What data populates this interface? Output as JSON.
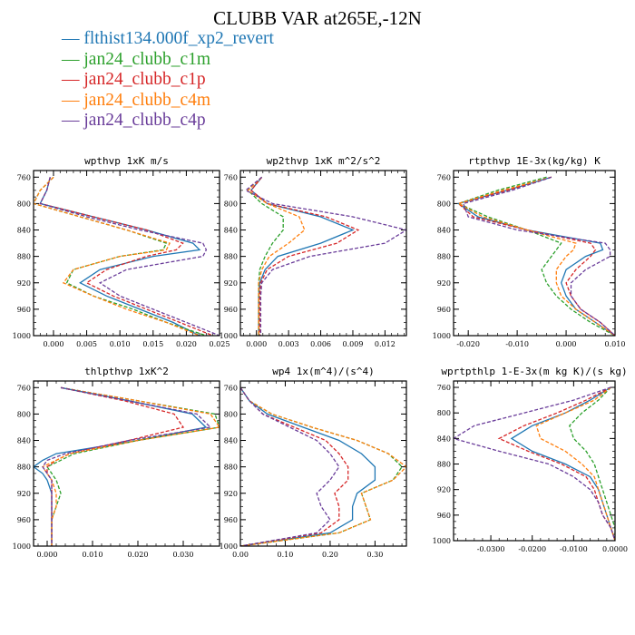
{
  "title": "CLUBB VAR at265E,-12N",
  "legend": [
    {
      "label": "flthist134.000f_xp2_revert",
      "color": "#1f77b4",
      "dash": "solid"
    },
    {
      "label": "jan24_clubb_c1m",
      "color": "#2ca02c",
      "dash": "dashed"
    },
    {
      "label": "jan24_clubb_c1p",
      "color": "#d62728",
      "dash": "dashed"
    },
    {
      "label": "jan24_clubb_c4m",
      "color": "#ff7f0e",
      "dash": "dashed"
    },
    {
      "label": "jan24_clubb_c4p",
      "color": "#6a3d9a",
      "dash": "dashed"
    }
  ],
  "legend_marker": "—",
  "chart_data": [
    {
      "type": "line",
      "title": "wpthvp  1xK m/s",
      "xlim": [
        -0.003,
        0.025
      ],
      "ylim": [
        1000,
        750
      ],
      "xticks": [
        0.0,
        0.005,
        0.01,
        0.015,
        0.02,
        0.025
      ],
      "xticklabels": [
        "0.000",
        "0.005",
        "0.010",
        "0.015",
        "0.020",
        "0.025"
      ],
      "yticks": [
        760,
        800,
        840,
        880,
        920,
        960,
        1000
      ],
      "yticklabels": [
        "760",
        "800",
        "840",
        "880",
        "920",
        "960",
        "1000"
      ],
      "grid": false,
      "y": [
        760,
        780,
        800,
        820,
        840,
        860,
        870,
        880,
        900,
        920,
        940,
        960,
        980,
        1000
      ],
      "series": [
        {
          "name": "flthist134.000f_xp2_revert",
          "values": [
            -0.0005,
            -0.001,
            -0.002,
            0.006,
            0.014,
            0.021,
            0.022,
            0.015,
            0.007,
            0.004,
            0.008,
            0.013,
            0.018,
            0.022
          ]
        },
        {
          "name": "jan24_clubb_c1m",
          "values": [
            0.0,
            -0.002,
            -0.003,
            0.004,
            0.011,
            0.017,
            0.0165,
            0.01,
            0.003,
            0.002,
            0.006,
            0.012,
            0.017,
            0.023
          ]
        },
        {
          "name": "jan24_clubb_c1p",
          "values": [
            -0.0005,
            -0.001,
            -0.002,
            0.006,
            0.014,
            0.0195,
            0.0185,
            0.014,
            0.008,
            0.005,
            0.009,
            0.014,
            0.019,
            0.024
          ]
        },
        {
          "name": "jan24_clubb_c4m",
          "values": [
            0.0,
            -0.002,
            -0.003,
            0.004,
            0.011,
            0.0175,
            0.017,
            0.01,
            0.003,
            0.0015,
            0.006,
            0.011,
            0.017,
            0.022
          ]
        },
        {
          "name": "jan24_clubb_c4p",
          "values": [
            -0.0005,
            -0.001,
            -0.002,
            0.005,
            0.013,
            0.0225,
            0.023,
            0.0225,
            0.011,
            0.007,
            0.01,
            0.015,
            0.02,
            0.025
          ]
        }
      ]
    },
    {
      "type": "line",
      "title": "wp2thvp  1xK m^2/s^2",
      "xlim": [
        -0.0015,
        0.014
      ],
      "ylim": [
        1000,
        750
      ],
      "xticks": [
        0.0,
        0.003,
        0.006,
        0.009,
        0.012
      ],
      "xticklabels": [
        "0.000",
        "0.003",
        "0.006",
        "0.009",
        "0.012"
      ],
      "yticks": [
        760,
        800,
        840,
        880,
        920,
        960,
        1000
      ],
      "yticklabels": [
        "760",
        "800",
        "840",
        "880",
        "920",
        "960",
        "1000"
      ],
      "grid": false,
      "y": [
        760,
        780,
        800,
        820,
        840,
        860,
        880,
        900,
        920,
        940,
        960,
        980,
        1000
      ],
      "series": [
        {
          "name": "flthist134.000f_xp2_revert",
          "values": [
            0.0005,
            -0.0005,
            0.001,
            0.006,
            0.009,
            0.006,
            0.002,
            0.0008,
            0.0003,
            0.0002,
            0.0002,
            0.0002,
            0.0002
          ]
        },
        {
          "name": "jan24_clubb_c1m",
          "values": [
            0.0005,
            -0.0008,
            0.0005,
            0.0025,
            0.0025,
            0.0015,
            0.0008,
            0.0003,
            0.0002,
            0.0002,
            0.0002,
            0.0002,
            0.0002
          ]
        },
        {
          "name": "jan24_clubb_c1p",
          "values": [
            0.0005,
            -0.0005,
            0.001,
            0.0065,
            0.0095,
            0.0075,
            0.003,
            0.001,
            0.0004,
            0.0003,
            0.0003,
            0.0003,
            0.0003
          ]
        },
        {
          "name": "jan24_clubb_c4m",
          "values": [
            0.0005,
            -0.0008,
            0.001,
            0.004,
            0.0045,
            0.003,
            0.0012,
            0.0005,
            0.0002,
            0.0002,
            0.0002,
            0.0002,
            0.0002
          ]
        },
        {
          "name": "jan24_clubb_c4p",
          "values": [
            0.0005,
            -0.001,
            0.0015,
            0.009,
            0.014,
            0.012,
            0.005,
            0.0015,
            0.0005,
            0.0004,
            0.0004,
            0.0004,
            0.0004
          ]
        }
      ]
    },
    {
      "type": "line",
      "title": "rtpthvp  1E-3x(kg/kg) K",
      "xlim": [
        -0.023,
        0.01
      ],
      "ylim": [
        1000,
        750
      ],
      "xticks": [
        -0.02,
        -0.01,
        0.0,
        0.01
      ],
      "xticklabels": [
        "-0.020",
        "-0.010",
        "0.000",
        "0.010"
      ],
      "yticks": [
        760,
        800,
        840,
        880,
        920,
        960,
        1000
      ],
      "yticklabels": [
        "760",
        "800",
        "840",
        "880",
        "920",
        "960",
        "1000"
      ],
      "grid": false,
      "y": [
        760,
        780,
        800,
        820,
        840,
        860,
        870,
        880,
        900,
        920,
        940,
        960,
        980,
        1000
      ],
      "series": [
        {
          "name": "flthist134.000f_xp2_revert",
          "values": [
            -0.003,
            -0.012,
            -0.022,
            -0.018,
            -0.008,
            0.007,
            0.0075,
            0.004,
            0.0,
            -0.001,
            0.0,
            0.002,
            0.006,
            0.01
          ]
        },
        {
          "name": "jan24_clubb_c1m",
          "values": [
            -0.004,
            -0.014,
            -0.022,
            -0.016,
            -0.008,
            -0.001,
            -0.002,
            -0.003,
            -0.005,
            -0.004,
            -0.002,
            0.001,
            0.005,
            0.01
          ]
        },
        {
          "name": "jan24_clubb_c1p",
          "values": [
            -0.003,
            -0.012,
            -0.022,
            -0.019,
            -0.008,
            0.005,
            0.006,
            0.005,
            0.002,
            0.0,
            0.001,
            0.003,
            0.007,
            0.01
          ]
        },
        {
          "name": "jan24_clubb_c4m",
          "values": [
            -0.003,
            -0.013,
            -0.022,
            -0.017,
            -0.008,
            0.002,
            0.0015,
            0.0,
            -0.002,
            -0.002,
            -0.001,
            0.002,
            0.006,
            0.01
          ]
        },
        {
          "name": "jan24_clubb_c4p",
          "values": [
            -0.003,
            -0.011,
            -0.021,
            -0.02,
            -0.01,
            0.008,
            0.009,
            0.009,
            0.004,
            0.001,
            0.001,
            0.003,
            0.007,
            0.01
          ]
        }
      ]
    },
    {
      "type": "line",
      "title": "thlpthvp  1xK^2",
      "xlim": [
        -0.003,
        0.038
      ],
      "ylim": [
        1000,
        750
      ],
      "xticks": [
        0.0,
        0.01,
        0.02,
        0.03
      ],
      "xticklabels": [
        "0.000",
        "0.010",
        "0.020",
        "0.030"
      ],
      "yticks": [
        760,
        800,
        840,
        880,
        920,
        960,
        1000
      ],
      "yticklabels": [
        "760",
        "800",
        "840",
        "880",
        "920",
        "960",
        "1000"
      ],
      "grid": false,
      "y": [
        760,
        780,
        800,
        820,
        840,
        860,
        870,
        880,
        890,
        900,
        920,
        940,
        960,
        980,
        1000
      ],
      "series": [
        {
          "name": "flthist134.000f_xp2_revert",
          "values": [
            0.003,
            0.018,
            0.032,
            0.035,
            0.02,
            0.002,
            -0.001,
            -0.003,
            -0.001,
            0.0,
            0.001,
            0.001,
            0.001,
            0.001,
            0.001
          ]
        },
        {
          "name": "jan24_clubb_c1m",
          "values": [
            0.003,
            0.02,
            0.037,
            0.038,
            0.02,
            0.006,
            0.003,
            0.0,
            0.001,
            0.002,
            0.003,
            0.002,
            0.001,
            0.001,
            0.001
          ]
        },
        {
          "name": "jan24_clubb_c1p",
          "values": [
            0.003,
            0.017,
            0.028,
            0.03,
            0.018,
            0.005,
            0.002,
            0.0,
            0.0,
            0.001,
            0.001,
            0.001,
            0.001,
            0.001,
            0.001
          ]
        },
        {
          "name": "jan24_clubb_c4m",
          "values": [
            0.003,
            0.02,
            0.036,
            0.038,
            0.02,
            0.005,
            0.002,
            -0.001,
            0.0,
            0.001,
            0.002,
            0.002,
            0.001,
            0.001,
            0.001
          ]
        },
        {
          "name": "jan24_clubb_c4p",
          "values": [
            0.003,
            0.018,
            0.033,
            0.036,
            0.018,
            0.004,
            0.0,
            -0.001,
            0.0,
            0.001,
            0.001,
            0.001,
            0.001,
            0.001,
            0.001
          ]
        }
      ]
    },
    {
      "type": "line",
      "title": "wp4  1x(m^4)/(s^4)",
      "xlim": [
        0.0,
        0.37
      ],
      "ylim": [
        1000,
        750
      ],
      "xticks": [
        0.0,
        0.1,
        0.2,
        0.3
      ],
      "xticklabels": [
        "0.00",
        "0.10",
        "0.20",
        "0.30"
      ],
      "yticks": [
        760,
        800,
        840,
        880,
        920,
        960,
        1000
      ],
      "yticklabels": [
        "760",
        "800",
        "840",
        "880",
        "920",
        "960",
        "1000"
      ],
      "grid": false,
      "y": [
        760,
        780,
        800,
        820,
        840,
        860,
        880,
        900,
        920,
        940,
        960,
        980,
        1000
      ],
      "series": [
        {
          "name": "flthist134.000f_xp2_revert",
          "values": [
            0.0,
            0.02,
            0.06,
            0.14,
            0.22,
            0.27,
            0.3,
            0.3,
            0.26,
            0.25,
            0.25,
            0.2,
            0.0
          ]
        },
        {
          "name": "jan24_clubb_c1m",
          "values": [
            0.0,
            0.02,
            0.07,
            0.16,
            0.26,
            0.33,
            0.36,
            0.34,
            0.27,
            0.28,
            0.29,
            0.22,
            0.0
          ]
        },
        {
          "name": "jan24_clubb_c1p",
          "values": [
            0.0,
            0.02,
            0.05,
            0.12,
            0.19,
            0.22,
            0.24,
            0.24,
            0.21,
            0.22,
            0.22,
            0.18,
            0.0
          ]
        },
        {
          "name": "jan24_clubb_c4m",
          "values": [
            0.0,
            0.02,
            0.07,
            0.16,
            0.26,
            0.33,
            0.37,
            0.34,
            0.27,
            0.28,
            0.29,
            0.22,
            0.0
          ]
        },
        {
          "name": "jan24_clubb_c4p",
          "values": [
            0.0,
            0.02,
            0.05,
            0.11,
            0.17,
            0.2,
            0.22,
            0.2,
            0.17,
            0.18,
            0.2,
            0.17,
            0.0
          ]
        }
      ]
    },
    {
      "type": "line",
      "title": "wprtpthlp  1-E-3x(m kg K)/(s kg)",
      "xlim": [
        -0.039,
        0.0
      ],
      "ylim": [
        1000,
        750
      ],
      "xticks": [
        -0.03,
        -0.02,
        -0.01,
        0.0
      ],
      "xticklabels": [
        "-0.0300",
        "-0.0200",
        "-0.0100",
        "0.0000"
      ],
      "yticks": [
        760,
        800,
        840,
        880,
        920,
        960,
        1000
      ],
      "yticklabels": [
        "760",
        "800",
        "840",
        "880",
        "920",
        "960",
        "1000"
      ],
      "grid": false,
      "y": [
        760,
        780,
        800,
        820,
        840,
        860,
        880,
        900,
        920,
        940,
        960,
        980,
        1000
      ],
      "series": [
        {
          "name": "flthist134.000f_xp2_revert",
          "values": [
            -0.001,
            -0.006,
            -0.012,
            -0.02,
            -0.025,
            -0.02,
            -0.012,
            -0.006,
            -0.004,
            -0.003,
            -0.002,
            -0.001,
            0.0
          ]
        },
        {
          "name": "jan24_clubb_c1m",
          "values": [
            -0.001,
            -0.004,
            -0.008,
            -0.011,
            -0.01,
            -0.007,
            -0.005,
            -0.004,
            -0.003,
            -0.002,
            -0.001,
            0.0,
            0.0
          ]
        },
        {
          "name": "jan24_clubb_c1p",
          "values": [
            -0.001,
            -0.007,
            -0.014,
            -0.022,
            -0.028,
            -0.021,
            -0.013,
            -0.007,
            -0.005,
            -0.004,
            -0.003,
            -0.001,
            0.0
          ]
        },
        {
          "name": "jan24_clubb_c4m",
          "values": [
            -0.001,
            -0.005,
            -0.012,
            -0.019,
            -0.018,
            -0.012,
            -0.008,
            -0.005,
            -0.004,
            -0.003,
            -0.002,
            -0.001,
            0.0
          ]
        },
        {
          "name": "jan24_clubb_c4p",
          "values": [
            -0.001,
            -0.01,
            -0.022,
            -0.034,
            -0.039,
            -0.028,
            -0.016,
            -0.01,
            -0.006,
            -0.004,
            -0.003,
            -0.001,
            0.0
          ]
        }
      ]
    }
  ]
}
